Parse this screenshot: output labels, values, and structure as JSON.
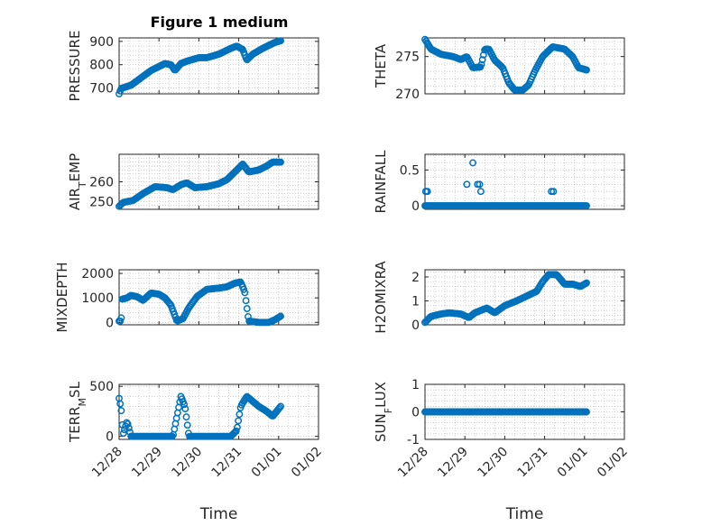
{
  "figure": {
    "title": "Figure 1 medium"
  },
  "chart_data": [
    {
      "type": "scatter",
      "ylabel": "PRESSURE",
      "ylim": [
        675,
        915
      ],
      "yticks": [
        700,
        800,
        900
      ],
      "yticklabels": [
        "700",
        "800",
        "900"
      ],
      "marker_color": "#0072BD",
      "xlim": [
        0,
        5
      ],
      "xticks": [
        0,
        1,
        2,
        3,
        4,
        5
      ],
      "xticklabels": [
        "12/28",
        "12/29",
        "12/30",
        "12/31",
        "01/01",
        "01/02"
      ],
      "xlabel": "",
      "show_xticklabels": false,
      "grid": true,
      "keyframes": [
        [
          0,
          675
        ],
        [
          0.05,
          698
        ],
        [
          0.3,
          712
        ],
        [
          0.8,
          775
        ],
        [
          1.15,
          805
        ],
        [
          1.3,
          800
        ],
        [
          1.4,
          775
        ],
        [
          1.55,
          805
        ],
        [
          1.7,
          815
        ],
        [
          2.0,
          830
        ],
        [
          2.2,
          830
        ],
        [
          2.5,
          845
        ],
        [
          2.8,
          870
        ],
        [
          2.95,
          880
        ],
        [
          3.1,
          865
        ],
        [
          3.2,
          820
        ],
        [
          3.35,
          845
        ],
        [
          3.6,
          870
        ],
        [
          3.9,
          895
        ],
        [
          4.1,
          905
        ]
      ]
    },
    {
      "type": "scatter",
      "ylabel": "THETA",
      "ylim": [
        270,
        277.5
      ],
      "yticks": [
        270,
        275
      ],
      "yticklabels": [
        "270",
        "275"
      ],
      "marker_color": "#0072BD",
      "xlim": [
        0,
        5
      ],
      "xticks": [
        0,
        1,
        2,
        3,
        4,
        5
      ],
      "xticklabels": [
        "12/28",
        "12/29",
        "12/30",
        "12/31",
        "01/01",
        "01/02"
      ],
      "xlabel": "",
      "show_xticklabels": false,
      "grid": true,
      "keyframes": [
        [
          0,
          277.3
        ],
        [
          0.15,
          276.0
        ],
        [
          0.4,
          275.3
        ],
        [
          0.7,
          275.0
        ],
        [
          0.9,
          274.6
        ],
        [
          1.05,
          275.0
        ],
        [
          1.2,
          273.5
        ],
        [
          1.4,
          273.6
        ],
        [
          1.5,
          276.0
        ],
        [
          1.6,
          276.0
        ],
        [
          1.75,
          274.5
        ],
        [
          1.95,
          273.5
        ],
        [
          2.1,
          271.5
        ],
        [
          2.25,
          270.5
        ],
        [
          2.45,
          270.5
        ],
        [
          2.6,
          271.2
        ],
        [
          2.75,
          273.0
        ],
        [
          2.95,
          275.0
        ],
        [
          3.2,
          276.3
        ],
        [
          3.5,
          276.0
        ],
        [
          3.7,
          275.0
        ],
        [
          3.85,
          273.5
        ],
        [
          4.05,
          273.2
        ]
      ]
    },
    {
      "type": "scatter",
      "ylabel": "AIR_TEMP",
      "ylim": [
        246,
        274
      ],
      "yticks": [
        250,
        260
      ],
      "yticklabels": [
        "250",
        "260"
      ],
      "marker_color": "#0072BD",
      "xlim": [
        0,
        5
      ],
      "xticks": [
        0,
        1,
        2,
        3,
        4,
        5
      ],
      "xticklabels": [
        "12/28",
        "12/29",
        "12/30",
        "12/31",
        "01/01",
        "01/02"
      ],
      "xlabel": "",
      "show_xticklabels": false,
      "grid": true,
      "keyframes": [
        [
          0,
          247.5
        ],
        [
          0.1,
          249.5
        ],
        [
          0.35,
          250.5
        ],
        [
          0.6,
          254
        ],
        [
          0.9,
          257.5
        ],
        [
          1.2,
          257.0
        ],
        [
          1.35,
          256
        ],
        [
          1.55,
          258.5
        ],
        [
          1.7,
          259.5
        ],
        [
          1.9,
          257.0
        ],
        [
          2.2,
          257.5
        ],
        [
          2.5,
          259
        ],
        [
          2.7,
          261
        ],
        [
          2.95,
          266
        ],
        [
          3.1,
          269
        ],
        [
          3.25,
          265
        ],
        [
          3.5,
          266
        ],
        [
          3.7,
          268
        ],
        [
          3.85,
          270
        ],
        [
          4.05,
          270
        ]
      ]
    },
    {
      "type": "scatter",
      "ylabel": "RAINFALL",
      "ylim": [
        -0.05,
        0.72
      ],
      "yticks": [
        0,
        0.5
      ],
      "yticklabels": [
        "0",
        "0.5"
      ],
      "marker_color": "#0072BD",
      "xlim": [
        0,
        5
      ],
      "xticks": [
        0,
        1,
        2,
        3,
        4,
        5
      ],
      "xticklabels": [
        "12/28",
        "12/29",
        "12/30",
        "12/31",
        "01/01",
        "01/02"
      ],
      "xlabel": "",
      "show_xticklabels": false,
      "grid": true,
      "baseline": 0,
      "spikes": [
        [
          0.02,
          0.2
        ],
        [
          0.06,
          0.2
        ],
        [
          1.05,
          0.3
        ],
        [
          1.2,
          0.6
        ],
        [
          1.32,
          0.3
        ],
        [
          1.37,
          0.3
        ],
        [
          3.17,
          0.2
        ],
        [
          3.22,
          0.2
        ],
        [
          0.02,
          0.2
        ],
        [
          1.4,
          0.2
        ]
      ]
    },
    {
      "type": "scatter",
      "ylabel": "MIXDEPTH",
      "ylim": [
        -100,
        2150
      ],
      "yticks": [
        0,
        1000,
        2000
      ],
      "yticklabels": [
        "0",
        "1000",
        "2000"
      ],
      "marker_color": "#0072BD",
      "xlim": [
        0,
        5
      ],
      "xticks": [
        0,
        1,
        2,
        3,
        4,
        5
      ],
      "xticklabels": [
        "12/28",
        "12/29",
        "12/30",
        "12/31",
        "01/01",
        "01/02"
      ],
      "xlabel": "",
      "show_xticklabels": false,
      "grid": true,
      "keyframes": [
        [
          0,
          50
        ],
        [
          0.05,
          50
        ],
        [
          0.08,
          950
        ],
        [
          0.2,
          1000
        ],
        [
          0.3,
          1100
        ],
        [
          0.45,
          1050
        ],
        [
          0.6,
          900
        ],
        [
          0.8,
          1200
        ],
        [
          1.0,
          1150
        ],
        [
          1.15,
          1000
        ],
        [
          1.3,
          700
        ],
        [
          1.45,
          50
        ],
        [
          1.6,
          150
        ],
        [
          1.75,
          600
        ],
        [
          1.95,
          1050
        ],
        [
          2.2,
          1350
        ],
        [
          2.5,
          1400
        ],
        [
          2.7,
          1450
        ],
        [
          2.9,
          1600
        ],
        [
          3.05,
          1650
        ],
        [
          3.15,
          1250
        ],
        [
          3.25,
          50
        ],
        [
          3.5,
          0
        ],
        [
          3.75,
          0
        ],
        [
          3.9,
          100
        ],
        [
          4.05,
          250
        ]
      ]
    },
    {
      "type": "scatter",
      "ylabel": "H2OMIXRA",
      "ylim": [
        0,
        2.3
      ],
      "yticks": [
        0,
        1,
        2
      ],
      "yticklabels": [
        "0",
        "1",
        "2"
      ],
      "marker_color": "#0072BD",
      "xlim": [
        0,
        5
      ],
      "xticks": [
        0,
        1,
        2,
        3,
        4,
        5
      ],
      "xticklabels": [
        "12/28",
        "12/29",
        "12/30",
        "12/31",
        "01/01",
        "01/02"
      ],
      "xlabel": "",
      "show_xticklabels": false,
      "grid": true,
      "keyframes": [
        [
          0,
          0.1
        ],
        [
          0.15,
          0.35
        ],
        [
          0.4,
          0.45
        ],
        [
          0.6,
          0.5
        ],
        [
          0.9,
          0.45
        ],
        [
          1.1,
          0.3
        ],
        [
          1.25,
          0.5
        ],
        [
          1.4,
          0.6
        ],
        [
          1.55,
          0.7
        ],
        [
          1.75,
          0.5
        ],
        [
          2.0,
          0.8
        ],
        [
          2.3,
          1.0
        ],
        [
          2.55,
          1.2
        ],
        [
          2.8,
          1.4
        ],
        [
          2.95,
          1.8
        ],
        [
          3.1,
          2.1
        ],
        [
          3.3,
          2.1
        ],
        [
          3.5,
          1.7
        ],
        [
          3.7,
          1.7
        ],
        [
          3.9,
          1.6
        ],
        [
          4.05,
          1.75
        ]
      ]
    },
    {
      "type": "scatter",
      "ylabel": "TERR_MSL",
      "ylim": [
        -30,
        520
      ],
      "yticks": [
        0,
        500
      ],
      "yticklabels": [
        "0",
        "500"
      ],
      "marker_color": "#0072BD",
      "xlim": [
        0,
        5
      ],
      "xticks": [
        0,
        1,
        2,
        3,
        4,
        5
      ],
      "xticklabels": [
        "12/28",
        "12/29",
        "12/30",
        "12/31",
        "01/01",
        "01/02"
      ],
      "xlabel": "Time",
      "show_xticklabels": true,
      "grid": true,
      "keyframes": [
        [
          0,
          380
        ],
        [
          0.05,
          280
        ],
        [
          0.1,
          20
        ],
        [
          0.2,
          150
        ],
        [
          0.3,
          0
        ],
        [
          0.6,
          0
        ],
        [
          1.0,
          0
        ],
        [
          1.35,
          0
        ],
        [
          1.45,
          200
        ],
        [
          1.55,
          400
        ],
        [
          1.65,
          300
        ],
        [
          1.75,
          0
        ],
        [
          2.1,
          0
        ],
        [
          2.5,
          0
        ],
        [
          2.8,
          0
        ],
        [
          2.95,
          60
        ],
        [
          3.05,
          300
        ],
        [
          3.2,
          400
        ],
        [
          3.35,
          350
        ],
        [
          3.5,
          300
        ],
        [
          3.7,
          250
        ],
        [
          3.85,
          200
        ],
        [
          4.05,
          300
        ]
      ]
    },
    {
      "type": "scatter",
      "ylabel": "SUN_FLUX",
      "ylim": [
        -1,
        1
      ],
      "yticks": [
        -1,
        0,
        1
      ],
      "yticklabels": [
        "-1",
        "0",
        "1"
      ],
      "marker_color": "#0072BD",
      "xlim": [
        0,
        5
      ],
      "xticks": [
        0,
        1,
        2,
        3,
        4,
        5
      ],
      "xticklabels": [
        "12/28",
        "12/29",
        "12/30",
        "12/31",
        "01/01",
        "01/02"
      ],
      "xlabel": "Time",
      "show_xticklabels": true,
      "grid": true,
      "keyframes": [
        [
          0,
          0
        ],
        [
          4.05,
          0
        ]
      ]
    }
  ]
}
